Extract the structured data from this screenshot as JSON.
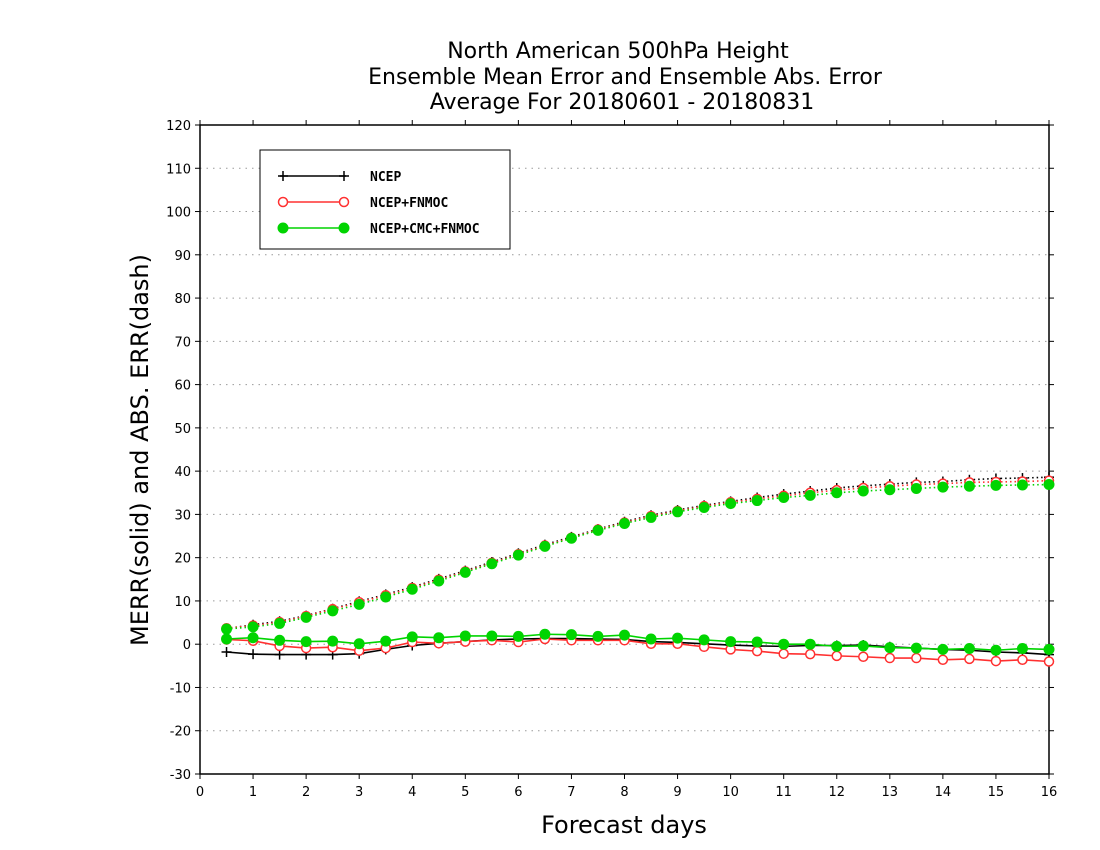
{
  "chart_data": {
    "type": "line",
    "title_lines": [
      "North American 500hPa Height",
      "Ensemble Mean Error and Ensemble Abs. Error",
      "Average For 20180601 - 20180831"
    ],
    "xlabel": "Forecast days",
    "ylabel": "MERR(solid) and ABS. ERR(dash)",
    "xlim": [
      0,
      16
    ],
    "ylim": [
      -30,
      120
    ],
    "xticks": [
      0,
      1,
      2,
      3,
      4,
      5,
      6,
      7,
      8,
      9,
      10,
      11,
      12,
      13,
      14,
      15,
      16
    ],
    "yticks": [
      -30,
      -20,
      -10,
      0,
      10,
      20,
      30,
      40,
      50,
      60,
      70,
      80,
      90,
      100,
      110,
      120
    ],
    "grid": "horizontal dotted",
    "legend_position": "top-left",
    "x": [
      0.5,
      1,
      1.5,
      2,
      2.5,
      3,
      3.5,
      4,
      4.5,
      5,
      5.5,
      6,
      6.5,
      7,
      7.5,
      8,
      8.5,
      9,
      9.5,
      10,
      10.5,
      11,
      11.5,
      12,
      12.5,
      13,
      13.5,
      14,
      14.5,
      15,
      15.5,
      16
    ],
    "series": [
      {
        "name": "NCEP",
        "color": "#000000",
        "marker": "plus",
        "merr": [
          -1.8,
          -2.3,
          -2.4,
          -2.4,
          -2.4,
          -2.2,
          -1.2,
          -0.3,
          0.2,
          0.6,
          1.0,
          1.2,
          1.3,
          1.3,
          1.2,
          1.1,
          0.6,
          0.4,
          0.1,
          -0.2,
          -0.4,
          -0.5,
          -0.3,
          -0.3,
          -0.2,
          -0.6,
          -0.9,
          -1.2,
          -1.4,
          -1.8,
          -2.0,
          -2.4
        ],
        "abs_err": [
          3.6,
          4.5,
          5.3,
          6.6,
          8.2,
          9.9,
          11.5,
          13.2,
          15.1,
          17.0,
          19.0,
          21.0,
          23.0,
          24.8,
          26.6,
          28.3,
          29.8,
          31.0,
          32.1,
          33.0,
          33.9,
          34.7,
          35.4,
          36.1,
          36.6,
          37.0,
          37.4,
          37.6,
          38.0,
          38.3,
          38.4,
          38.6
        ]
      },
      {
        "name": "NCEP+FNMOC",
        "color": "#ff3030",
        "marker": "open-circle",
        "merr": [
          1.1,
          0.8,
          -0.4,
          -0.9,
          -0.7,
          -1.5,
          -0.9,
          0.5,
          0.2,
          0.6,
          0.9,
          0.5,
          1.2,
          0.9,
          0.9,
          0.9,
          0.1,
          0.1,
          -0.6,
          -1.2,
          -1.6,
          -2.2,
          -2.3,
          -2.7,
          -2.9,
          -3.2,
          -3.2,
          -3.6,
          -3.4,
          -3.9,
          -3.6,
          -4.0
        ],
        "abs_err": [
          3.7,
          4.3,
          5.1,
          6.5,
          8.1,
          9.7,
          11.3,
          13.0,
          14.9,
          16.8,
          18.8,
          20.8,
          22.8,
          24.6,
          26.5,
          28.1,
          29.6,
          30.8,
          31.9,
          32.8,
          33.6,
          34.3,
          35.0,
          35.6,
          36.1,
          36.5,
          36.9,
          37.1,
          37.4,
          37.5,
          37.6,
          37.8
        ]
      },
      {
        "name": "NCEP+CMC+FNMOC",
        "color": "#00d400",
        "marker": "filled-circle",
        "merr": [
          1.2,
          1.5,
          0.9,
          0.6,
          0.7,
          0.1,
          0.7,
          1.7,
          1.5,
          1.9,
          1.9,
          1.8,
          2.3,
          2.2,
          1.8,
          2.1,
          1.2,
          1.4,
          1.0,
          0.6,
          0.5,
          0.0,
          0.0,
          -0.5,
          -0.4,
          -0.8,
          -0.9,
          -1.2,
          -1.0,
          -1.4,
          -1.0,
          -1.2
        ],
        "abs_err": [
          3.5,
          4.0,
          4.8,
          6.2,
          7.7,
          9.2,
          10.9,
          12.7,
          14.6,
          16.6,
          18.6,
          20.6,
          22.6,
          24.5,
          26.3,
          27.9,
          29.3,
          30.6,
          31.6,
          32.5,
          33.2,
          33.9,
          34.4,
          35.0,
          35.4,
          35.7,
          36.0,
          36.3,
          36.5,
          36.7,
          36.8,
          36.9
        ]
      }
    ]
  }
}
